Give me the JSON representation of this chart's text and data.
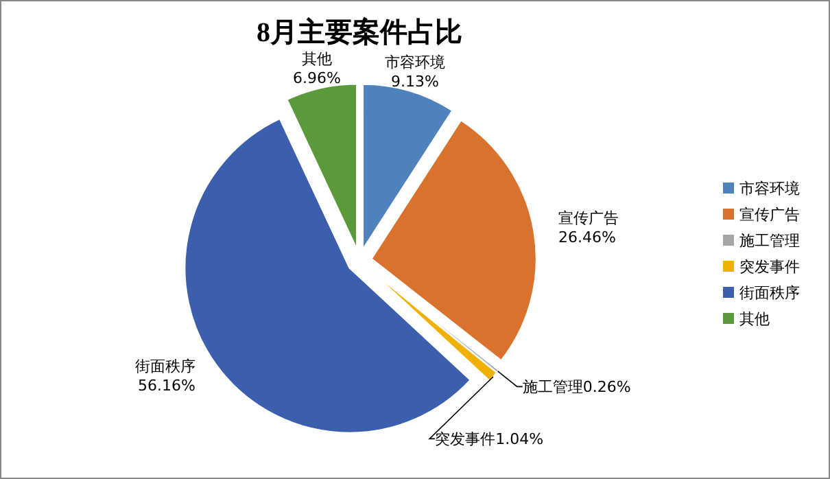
{
  "chart_data": {
    "type": "pie",
    "title": "8月主要案件占比",
    "categories": [
      "市容环境",
      "宣传广告",
      "施工管理",
      "突发事件",
      "街面秩序",
      "其他"
    ],
    "values": [
      9.13,
      26.46,
      0.26,
      1.04,
      56.16,
      6.96
    ],
    "colors": [
      "#4f81bd",
      "#d8722c",
      "#a5a5a5",
      "#f0b000",
      "#3c5fad",
      "#5b9a3a"
    ],
    "value_labels": [
      "9.13%",
      "26.46%",
      "0.26%",
      "1.04%",
      "56.16%",
      "6.96%"
    ],
    "legend": "right"
  }
}
